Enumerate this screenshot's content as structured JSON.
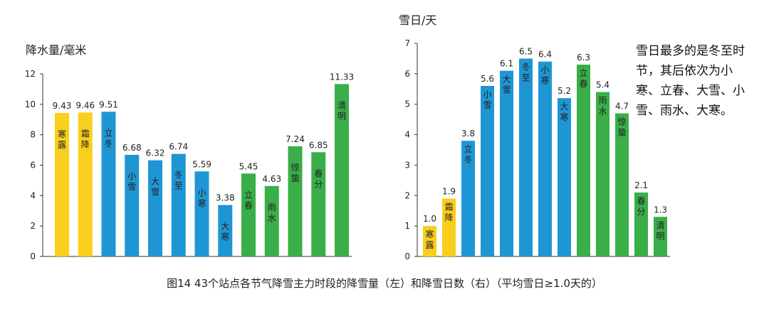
{
  "caption": "图14 43个站点各节气降雪主力时段的降雪量（左）和降雪日数（右）（平均雪日≥1.0天的）",
  "colors": {
    "autumn": "#f9ce1d",
    "winter": "#1f96d4",
    "spring": "#3aae49",
    "axis": "#333333"
  },
  "chart_data": [
    {
      "type": "bar",
      "ylabel": "降水量/毫米",
      "ylim": [
        0,
        12
      ],
      "yticks": [
        0,
        2,
        4,
        6,
        8,
        10,
        12
      ],
      "grid": false,
      "categories": [
        "寒露",
        "霜降",
        "立冬",
        "小雪",
        "大雪",
        "冬至",
        "小寒",
        "大寒",
        "立春",
        "雨水",
        "惊蛰",
        "春分",
        "清明"
      ],
      "values": [
        9.43,
        9.46,
        9.51,
        6.68,
        6.32,
        6.74,
        5.59,
        3.38,
        5.45,
        4.63,
        7.24,
        6.85,
        11.33
      ],
      "value_labels": [
        "9.43",
        "9.46",
        "9.51",
        "6.68",
        "6.32",
        "6.74",
        "5.59",
        "3.38",
        "5.45",
        "4.63",
        "7.24",
        "6.85",
        "11.33"
      ],
      "season_colors": [
        "autumn",
        "autumn",
        "winter",
        "winter",
        "winter",
        "winter",
        "winter",
        "winter",
        "spring",
        "spring",
        "spring",
        "spring",
        "spring"
      ],
      "label_pos": [
        "inside",
        "inside",
        "inside",
        "inside",
        "inside",
        "inside",
        "inside",
        "inside",
        "inside",
        "inside",
        "inside",
        "inside",
        "inside"
      ]
    },
    {
      "type": "bar",
      "ylabel": "雪日/天",
      "ylim": [
        0,
        7
      ],
      "yticks": [
        0,
        1,
        2,
        3,
        4,
        5,
        6,
        7
      ],
      "grid": false,
      "categories": [
        "寒露",
        "霜降",
        "立冬",
        "小雪",
        "大雪",
        "冬至",
        "小寒",
        "大寒",
        "立春",
        "雨水",
        "惊蛰",
        "春分",
        "清明"
      ],
      "values": [
        1.0,
        1.9,
        3.8,
        5.6,
        6.1,
        6.5,
        6.4,
        5.2,
        6.3,
        5.4,
        4.7,
        2.1,
        1.3
      ],
      "value_labels": [
        "1.0",
        "1.9",
        "3.8",
        "5.6",
        "6.1",
        "6.5",
        "6.4",
        "5.2",
        "6.3",
        "5.4",
        "4.7",
        "2.1",
        "1.3"
      ],
      "season_colors": [
        "autumn",
        "autumn",
        "winter",
        "winter",
        "winter",
        "winter",
        "winter",
        "winter",
        "spring",
        "spring",
        "spring",
        "spring",
        "spring"
      ],
      "label_pos": [
        "inside",
        "inside",
        "inside",
        "inside",
        "inside",
        "inside",
        "inside",
        "inside",
        "inside",
        "inside",
        "inside",
        "inside",
        "inside"
      ],
      "annotation": "雪日最多的是冬至时节，其后依次为小寒、立春、大雪、小雪、雨水、大寒。"
    }
  ]
}
